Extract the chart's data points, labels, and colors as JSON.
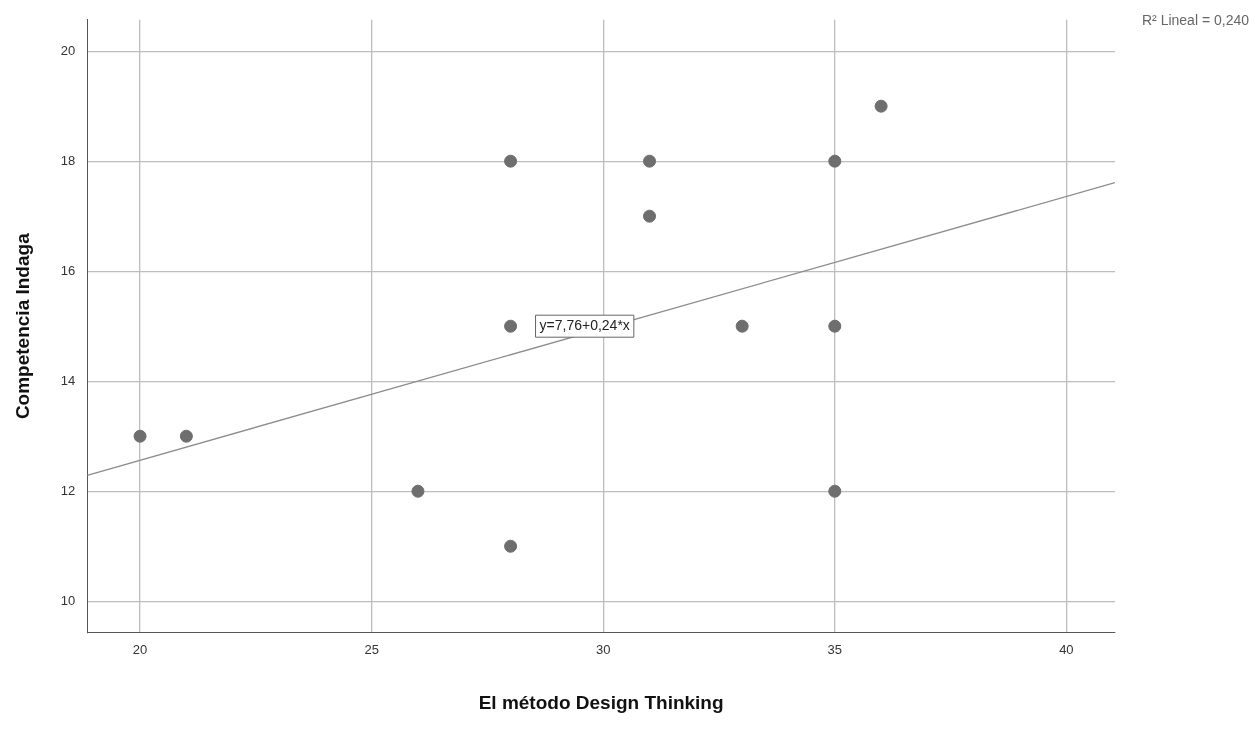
{
  "chart_data": {
    "type": "scatter",
    "xlabel": "El método Design Thinking",
    "ylabel": "Competencia Indaga",
    "series": [
      {
        "color": "#6e6e6e",
        "x": [
          20,
          21,
          26,
          28,
          28,
          28,
          31,
          31,
          33,
          35,
          35,
          35,
          36
        ],
        "values": [
          13,
          13,
          12,
          18,
          15,
          11,
          18,
          17,
          15,
          18,
          15,
          12,
          19
        ]
      },
      {
        "type": "line",
        "marker": "none",
        "color": "#8c8c8c",
        "x": [
          18.86,
          41.05
        ],
        "values": [
          12.29,
          17.61
        ]
      }
    ],
    "xlim": [
      18.86,
      41.05
    ],
    "xticks": [
      20,
      25,
      30,
      35,
      40
    ],
    "ylim": [
      9.43,
      20.57
    ],
    "yticks": [
      10,
      12,
      14,
      16,
      18,
      20
    ],
    "grid": true,
    "legend": false,
    "marker": "circle",
    "annotations": [
      "R² Lineal = 0,240",
      "y=7,76+0,24*x"
    ]
  }
}
